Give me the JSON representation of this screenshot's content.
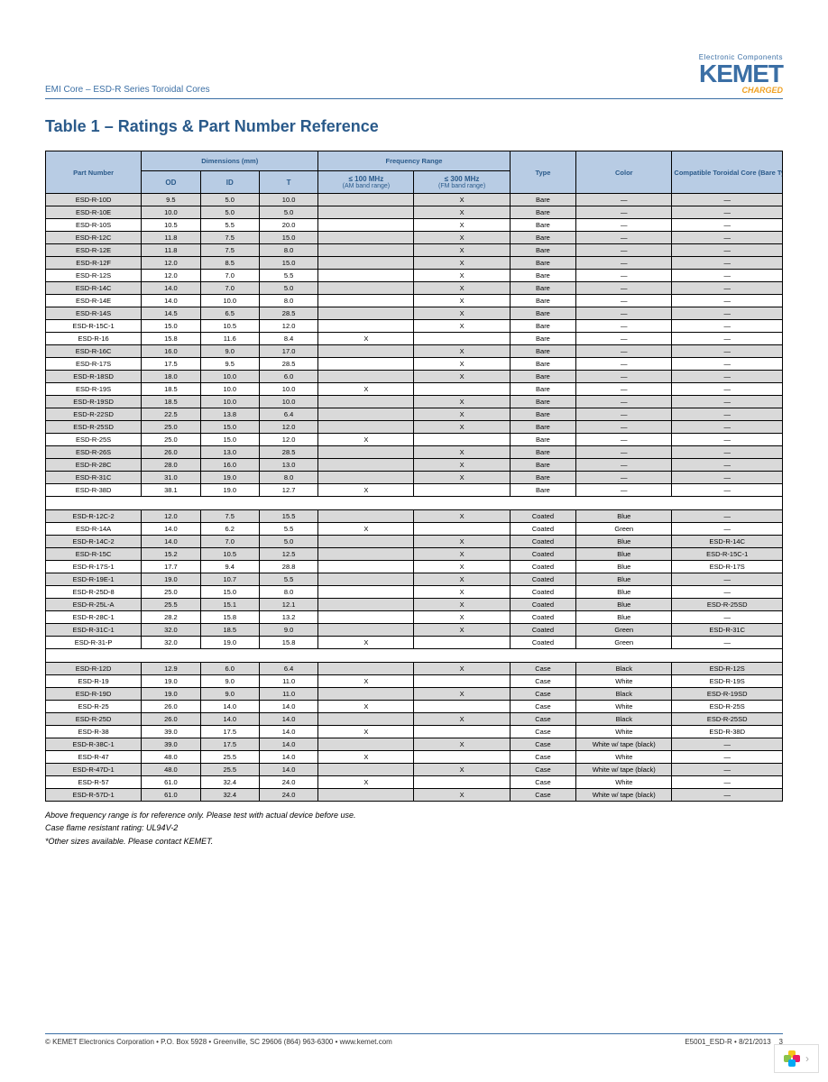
{
  "header": {
    "doc_line": "EMI Core – ESD-R Series Toroidal Cores",
    "brand_tag": "Electronic Components",
    "brand": "KEMET",
    "charged": "CHARGED"
  },
  "title": "Table 1 – Ratings & Part Number Reference",
  "columns": {
    "part": "Part Number",
    "dims": "Dimensions (mm)",
    "od": "OD",
    "id": "ID",
    "t": "T",
    "freq": "Frequency Range",
    "am": "≤ 100 MHz",
    "am_sub": "(AM band range)",
    "fm": "≤ 300 MHz",
    "fm_sub": "(FM band range)",
    "type": "Type",
    "color": "Color",
    "compat": "Compatible Toroidal Core (Bare Type)"
  },
  "sections": [
    {
      "rows": [
        {
          "g": 1,
          "c": [
            "ESD-R-10D",
            "9.5",
            "5.0",
            "10.0",
            "",
            "X",
            "Bare",
            "—",
            "—"
          ]
        },
        {
          "g": 1,
          "c": [
            "ESD-R-10E",
            "10.0",
            "5.0",
            "5.0",
            "",
            "X",
            "Bare",
            "—",
            "—"
          ]
        },
        {
          "g": 0,
          "c": [
            "ESD-R-10S",
            "10.5",
            "5.5",
            "20.0",
            "",
            "X",
            "Bare",
            "—",
            "—"
          ]
        },
        {
          "g": 1,
          "c": [
            "ESD-R-12C",
            "11.8",
            "7.5",
            "15.0",
            "",
            "X",
            "Bare",
            "—",
            "—"
          ]
        },
        {
          "g": 1,
          "c": [
            "ESD-R-12E",
            "11.8",
            "7.5",
            "8.0",
            "",
            "X",
            "Bare",
            "—",
            "—"
          ]
        },
        {
          "g": 1,
          "c": [
            "ESD-R-12F",
            "12.0",
            "8.5",
            "15.0",
            "",
            "X",
            "Bare",
            "—",
            "—"
          ]
        },
        {
          "g": 0,
          "c": [
            "ESD-R-12S",
            "12.0",
            "7.0",
            "5.5",
            "",
            "X",
            "Bare",
            "—",
            "—"
          ]
        },
        {
          "g": 1,
          "c": [
            "ESD-R-14C",
            "14.0",
            "7.0",
            "5.0",
            "",
            "X",
            "Bare",
            "—",
            "—"
          ]
        },
        {
          "g": 0,
          "c": [
            "ESD-R-14E",
            "14.0",
            "10.0",
            "8.0",
            "",
            "X",
            "Bare",
            "—",
            "—"
          ]
        },
        {
          "g": 1,
          "c": [
            "ESD-R-14S",
            "14.5",
            "6.5",
            "28.5",
            "",
            "X",
            "Bare",
            "—",
            "—"
          ]
        },
        {
          "g": 0,
          "c": [
            "ESD-R-15C-1",
            "15.0",
            "10.5",
            "12.0",
            "",
            "X",
            "Bare",
            "—",
            "—"
          ]
        },
        {
          "g": 0,
          "c": [
            "ESD-R-16",
            "15.8",
            "11.6",
            "8.4",
            "X",
            "",
            "Bare",
            "—",
            "—"
          ]
        },
        {
          "g": 1,
          "c": [
            "ESD-R-16C",
            "16.0",
            "9.0",
            "17.0",
            "",
            "X",
            "Bare",
            "—",
            "—"
          ]
        },
        {
          "g": 0,
          "c": [
            "ESD-R-17S",
            "17.5",
            "9.5",
            "28.5",
            "",
            "X",
            "Bare",
            "—",
            "—"
          ]
        },
        {
          "g": 1,
          "c": [
            "ESD-R-18SD",
            "18.0",
            "10.0",
            "6.0",
            "",
            "X",
            "Bare",
            "—",
            "—"
          ]
        },
        {
          "g": 0,
          "c": [
            "ESD-R-19S",
            "18.5",
            "10.0",
            "10.0",
            "X",
            "",
            "Bare",
            "—",
            "—"
          ]
        },
        {
          "g": 1,
          "c": [
            "ESD-R-19SD",
            "18.5",
            "10.0",
            "10.0",
            "",
            "X",
            "Bare",
            "—",
            "—"
          ]
        },
        {
          "g": 1,
          "c": [
            "ESD-R-22SD",
            "22.5",
            "13.8",
            "6.4",
            "",
            "X",
            "Bare",
            "—",
            "—"
          ]
        },
        {
          "g": 1,
          "c": [
            "ESD-R-25SD",
            "25.0",
            "15.0",
            "12.0",
            "",
            "X",
            "Bare",
            "—",
            "—"
          ]
        },
        {
          "g": 0,
          "c": [
            "ESD-R-25S",
            "25.0",
            "15.0",
            "12.0",
            "X",
            "",
            "Bare",
            "—",
            "—"
          ]
        },
        {
          "g": 1,
          "c": [
            "ESD-R-26S",
            "26.0",
            "13.0",
            "28.5",
            "",
            "X",
            "Bare",
            "—",
            "—"
          ]
        },
        {
          "g": 1,
          "c": [
            "ESD-R-28C",
            "28.0",
            "16.0",
            "13.0",
            "",
            "X",
            "Bare",
            "—",
            "—"
          ]
        },
        {
          "g": 1,
          "c": [
            "ESD-R-31C",
            "31.0",
            "19.0",
            "8.0",
            "",
            "X",
            "Bare",
            "—",
            "—"
          ]
        },
        {
          "g": 0,
          "c": [
            "ESD-R-38D",
            "38.1",
            "19.0",
            "12.7",
            "X",
            "",
            "Bare",
            "—",
            "—"
          ]
        }
      ]
    },
    {
      "rows": [
        {
          "g": 1,
          "c": [
            "ESD-R-12C-2",
            "12.0",
            "7.5",
            "15.5",
            "",
            "X",
            "Coated",
            "Blue",
            "—"
          ]
        },
        {
          "g": 0,
          "c": [
            "ESD-R-14A",
            "14.0",
            "6.2",
            "5.5",
            "X",
            "",
            "Coated",
            "Green",
            "—"
          ]
        },
        {
          "g": 1,
          "c": [
            "ESD-R-14C-2",
            "14.0",
            "7.0",
            "5.0",
            "",
            "X",
            "Coated",
            "Blue",
            "ESD-R-14C"
          ]
        },
        {
          "g": 1,
          "c": [
            "ESD-R-15C",
            "15.2",
            "10.5",
            "12.5",
            "",
            "X",
            "Coated",
            "Blue",
            "ESD-R-15C-1"
          ]
        },
        {
          "g": 0,
          "c": [
            "ESD-R-17S-1",
            "17.7",
            "9.4",
            "28.8",
            "",
            "X",
            "Coated",
            "Blue",
            "ESD-R-17S"
          ]
        },
        {
          "g": 1,
          "c": [
            "ESD-R-19E-1",
            "19.0",
            "10.7",
            "5.5",
            "",
            "X",
            "Coated",
            "Blue",
            "—"
          ]
        },
        {
          "g": 0,
          "c": [
            "ESD-R-25D-8",
            "25.0",
            "15.0",
            "8.0",
            "",
            "X",
            "Coated",
            "Blue",
            "—"
          ]
        },
        {
          "g": 1,
          "c": [
            "ESD-R-25L-A",
            "25.5",
            "15.1",
            "12.1",
            "",
            "X",
            "Coated",
            "Blue",
            "ESD-R-25SD"
          ]
        },
        {
          "g": 0,
          "c": [
            "ESD-R-28C-1",
            "28.2",
            "15.8",
            "13.2",
            "",
            "X",
            "Coated",
            "Blue",
            "—"
          ]
        },
        {
          "g": 1,
          "c": [
            "ESD-R-31C-1",
            "32.0",
            "18.5",
            "9.0",
            "",
            "X",
            "Coated",
            "Green",
            "ESD-R-31C"
          ]
        },
        {
          "g": 0,
          "c": [
            "ESD-R-31-P",
            "32.0",
            "19.0",
            "15.8",
            "X",
            "",
            "Coated",
            "Green",
            "—"
          ]
        }
      ]
    },
    {
      "rows": [
        {
          "g": 1,
          "c": [
            "ESD-R-12D",
            "12.9",
            "6.0",
            "6.4",
            "",
            "X",
            "Case",
            "Black",
            "ESD-R-12S"
          ]
        },
        {
          "g": 0,
          "c": [
            "ESD-R-19",
            "19.0",
            "9.0",
            "11.0",
            "X",
            "",
            "Case",
            "White",
            "ESD-R-19S"
          ]
        },
        {
          "g": 1,
          "c": [
            "ESD-R-19D",
            "19.0",
            "9.0",
            "11.0",
            "",
            "X",
            "Case",
            "Black",
            "ESD-R-19SD"
          ]
        },
        {
          "g": 0,
          "c": [
            "ESD-R-25",
            "26.0",
            "14.0",
            "14.0",
            "X",
            "",
            "Case",
            "White",
            "ESD-R-25S"
          ]
        },
        {
          "g": 1,
          "c": [
            "ESD-R-25D",
            "26.0",
            "14.0",
            "14.0",
            "",
            "X",
            "Case",
            "Black",
            "ESD-R-25SD"
          ]
        },
        {
          "g": 0,
          "c": [
            "ESD-R-38",
            "39.0",
            "17.5",
            "14.0",
            "X",
            "",
            "Case",
            "White",
            "ESD-R-38D"
          ]
        },
        {
          "g": 1,
          "c": [
            "ESD-R-38C-1",
            "39.0",
            "17.5",
            "14.0",
            "",
            "X",
            "Case",
            "White w/ tape (black)",
            "—"
          ]
        },
        {
          "g": 0,
          "c": [
            "ESD-R-47",
            "48.0",
            "25.5",
            "14.0",
            "X",
            "",
            "Case",
            "White",
            "—"
          ]
        },
        {
          "g": 1,
          "c": [
            "ESD-R-47D-1",
            "48.0",
            "25.5",
            "14.0",
            "",
            "X",
            "Case",
            "White w/ tape (black)",
            "—"
          ]
        },
        {
          "g": 0,
          "c": [
            "ESD-R-57",
            "61.0",
            "32.4",
            "24.0",
            "X",
            "",
            "Case",
            "White",
            "—"
          ]
        },
        {
          "g": 1,
          "c": [
            "ESD-R-57D-1",
            "61.0",
            "32.4",
            "24.0",
            "",
            "X",
            "Case",
            "White w/ tape (black)",
            "—"
          ]
        }
      ]
    }
  ],
  "notes": [
    "Above frequency range is for reference only. Please test with actual device before use.",
    "Case flame resistant rating: UL94V-2",
    "*Other sizes available. Please contact KEMET."
  ],
  "footer": {
    "left": "© KEMET Electronics Corporation • P.O. Box 5928 • Greenville, SC 29606 (864) 963-6300 • www.kemet.com",
    "right": "E5001_ESD-R • 8/21/2013",
    "page": "3"
  },
  "colors": {
    "header_bg": "#b8cce4",
    "grey_row": "#d9d9d9",
    "accent": "#3b6fa5"
  }
}
